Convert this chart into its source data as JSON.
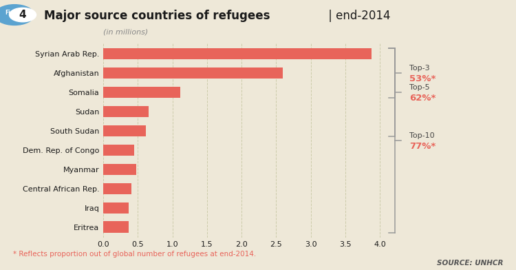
{
  "title_bold": "Major source countries of refugees",
  "title_suffix": " | end-2014",
  "subtitle": "(in millions)",
  "fig_num": "4",
  "source": "SOURCE: UNHCR",
  "footnote": "* Reflects proportion out of global number of refugees at end-2014.",
  "background_color": "#eee8d8",
  "bar_color": "#e8645a",
  "categories": [
    "Syrian Arab Rep.",
    "Afghanistan",
    "Somalia",
    "Sudan",
    "South Sudan",
    "Dem. Rep. of Congo",
    "Myanmar",
    "Central African Rep.",
    "Iraq",
    "Eritrea"
  ],
  "values": [
    3.88,
    2.59,
    1.11,
    0.66,
    0.62,
    0.45,
    0.48,
    0.41,
    0.37,
    0.37
  ],
  "xticks": [
    0.0,
    0.5,
    1.0,
    1.5,
    2.0,
    2.5,
    3.0,
    3.5,
    4.0
  ],
  "top3_label": "Top-3",
  "top3_pct": "53%*",
  "top5_label": "Top-5",
  "top5_pct": "62%*",
  "top10_label": "Top-10",
  "top10_pct": "77%*",
  "bracket_color": "#999999",
  "pct_color": "#e8645a",
  "label_color": "#444444",
  "title_color": "#1a1a1a",
  "grid_color": "#ccccaa",
  "badge_color": "#5ba3d0",
  "footnote_color": "#e8645a"
}
